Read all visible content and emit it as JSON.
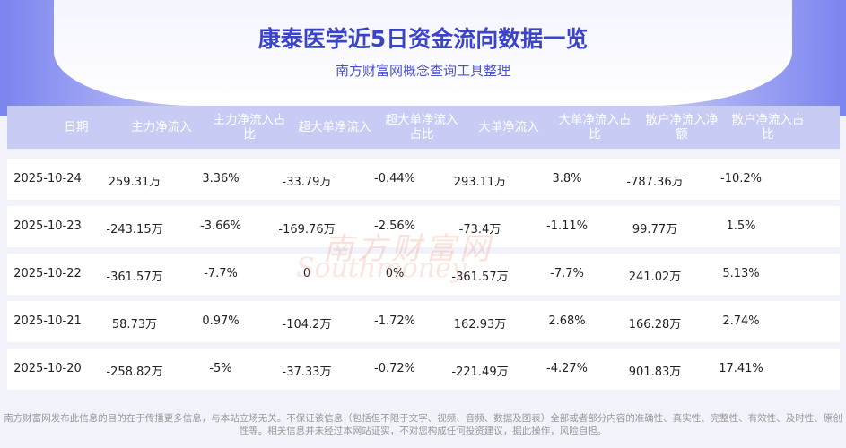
{
  "header": {
    "title": "康泰医学近5日资金流向数据一览",
    "subtitle": "南方财富网概念查询工具整理"
  },
  "watermark": {
    "cn": "南方财富网",
    "en": "Southmoney"
  },
  "table": {
    "headers": [
      "日期",
      "主力净流入",
      "主力净流入占比",
      "超大单净流入",
      "超大单净流入占比",
      "大单净流入",
      "大单净流入占比",
      "散户净流入净额",
      "散户净流入占比"
    ],
    "rows": [
      [
        "2025-10-24",
        "259.31万",
        "3.36%",
        "-33.79万",
        "-0.44%",
        "293.11万",
        "3.8%",
        "-787.36万",
        "-10.2%"
      ],
      [
        "2025-10-23",
        "-243.15万",
        "-3.66%",
        "-169.76万",
        "-2.56%",
        "-73.4万",
        "-1.11%",
        "99.77万",
        "1.5%"
      ],
      [
        "2025-10-22",
        "-361.57万",
        "-7.7%",
        "0",
        "0%",
        "-361.57万",
        "-7.7%",
        "241.02万",
        "5.13%"
      ],
      [
        "2025-10-21",
        "58.73万",
        "0.97%",
        "-104.2万",
        "-1.72%",
        "162.93万",
        "2.68%",
        "166.28万",
        "2.74%"
      ],
      [
        "2025-10-20",
        "-258.82万",
        "-5%",
        "-37.33万",
        "-0.72%",
        "-221.49万",
        "-4.27%",
        "901.83万",
        "17.41%"
      ]
    ]
  },
  "footer": {
    "disclaimer": "南方财富网发布此信息的目的在于传播更多信息，与本站立场无关。不保证该信息（包括但不限于文字、视频、音频、数据及图表）全部或者部分内容的准确性、真实性、完整性、有效性、及时性、原创性等。相关信息并未经过本网站证实，不对您构成任何投资建议，据此操作，风险自担。"
  }
}
